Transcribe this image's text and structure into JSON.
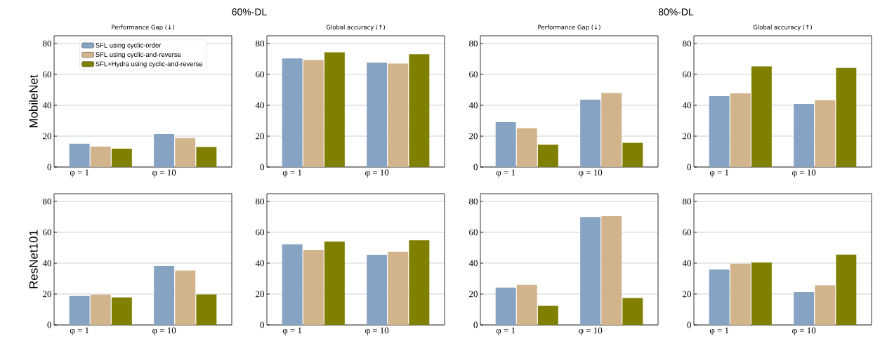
{
  "chart_data": [
    {
      "type": "bar",
      "title": "Performance Gap (↓)",
      "ylabel": "MobileNet",
      "annotations": [
        "60%-DL"
      ],
      "categories": [
        "φ = 1",
        "φ = 10"
      ],
      "legend": "top",
      "grid": "y",
      "ylim": [
        0,
        85
      ],
      "yticks": [
        0,
        20,
        40,
        60,
        80
      ],
      "series": [
        {
          "name": "SFL using cyclic-order",
          "color": "#86a3c3",
          "values": [
            15.1,
            21.4
          ]
        },
        {
          "name": "SFL using cyclic-and-reverse",
          "color": "#d2b48c",
          "values": [
            13.3,
            18.7
          ]
        },
        {
          "name": "SFL+Hydra using cyclic-and-reverse",
          "color": "#808000",
          "values": [
            11.9,
            13.0
          ]
        }
      ]
    },
    {
      "type": "bar",
      "title": "Global accuracy (↑)",
      "categories": [
        "φ = 1",
        "φ = 10"
      ],
      "grid": "y",
      "ylim": [
        0,
        85
      ],
      "yticks": [
        0,
        20,
        40,
        60,
        80
      ],
      "series": [
        {
          "color": "#86a3c3",
          "values": [
            70.3,
            67.6
          ]
        },
        {
          "color": "#d2b48c",
          "values": [
            69.3,
            67.0
          ]
        },
        {
          "color": "#808000",
          "values": [
            74.3,
            73.1
          ]
        }
      ]
    },
    {
      "type": "bar",
      "title": "Performance Gap (↓)",
      "annotations": [
        "80%-DL"
      ],
      "categories": [
        "φ = 1",
        "φ = 10"
      ],
      "grid": "y",
      "ylim": [
        0,
        85
      ],
      "yticks": [
        0,
        20,
        40,
        60,
        80
      ],
      "series": [
        {
          "color": "#86a3c3",
          "values": [
            29.1,
            43.6
          ]
        },
        {
          "color": "#d2b48c",
          "values": [
            25.1,
            48.0
          ]
        },
        {
          "color": "#808000",
          "values": [
            14.5,
            15.7
          ]
        }
      ]
    },
    {
      "type": "bar",
      "title": "Global accuracy (↑)",
      "categories": [
        "φ = 1",
        "φ = 10"
      ],
      "grid": "y",
      "ylim": [
        0,
        85
      ],
      "yticks": [
        0,
        20,
        40,
        60,
        80
      ],
      "series": [
        {
          "color": "#86a3c3",
          "values": [
            45.9,
            40.9
          ]
        },
        {
          "color": "#d2b48c",
          "values": [
            47.7,
            43.3
          ]
        },
        {
          "color": "#808000",
          "values": [
            65.2,
            64.2
          ]
        }
      ]
    },
    {
      "type": "bar",
      "ylabel": "ResNet101",
      "categories": [
        "φ = 1",
        "φ = 10"
      ],
      "grid": "y",
      "ylim": [
        0,
        85
      ],
      "yticks": [
        0,
        20,
        40,
        60,
        80
      ],
      "series": [
        {
          "color": "#86a3c3",
          "values": [
            18.7,
            38.2
          ]
        },
        {
          "color": "#d2b48c",
          "values": [
            19.6,
            35.2
          ]
        },
        {
          "color": "#808000",
          "values": [
            17.8,
            19.8
          ]
        }
      ]
    },
    {
      "type": "bar",
      "categories": [
        "φ = 1",
        "φ = 10"
      ],
      "grid": "y",
      "ylim": [
        0,
        85
      ],
      "yticks": [
        0,
        20,
        40,
        60,
        80
      ],
      "series": [
        {
          "color": "#86a3c3",
          "values": [
            52.2,
            45.4
          ]
        },
        {
          "color": "#d2b48c",
          "values": [
            48.6,
            47.4
          ]
        },
        {
          "color": "#808000",
          "values": [
            54.0,
            54.9
          ]
        }
      ]
    },
    {
      "type": "bar",
      "categories": [
        "φ = 1",
        "φ = 10"
      ],
      "grid": "y",
      "ylim": [
        0,
        85
      ],
      "yticks": [
        0,
        20,
        40,
        60,
        80
      ],
      "series": [
        {
          "color": "#86a3c3",
          "values": [
            24.2,
            69.9
          ]
        },
        {
          "color": "#d2b48c",
          "values": [
            26.0,
            70.5
          ]
        },
        {
          "color": "#808000",
          "values": [
            12.4,
            17.4
          ]
        }
      ]
    },
    {
      "type": "bar",
      "categories": [
        "φ = 1",
        "φ = 10"
      ],
      "grid": "y",
      "ylim": [
        0,
        85
      ],
      "yticks": [
        0,
        20,
        40,
        60,
        80
      ],
      "series": [
        {
          "color": "#86a3c3",
          "values": [
            35.9,
            21.4
          ]
        },
        {
          "color": "#d2b48c",
          "values": [
            39.7,
            25.7
          ]
        },
        {
          "color": "#808000",
          "values": [
            40.5,
            45.6
          ]
        }
      ]
    }
  ]
}
